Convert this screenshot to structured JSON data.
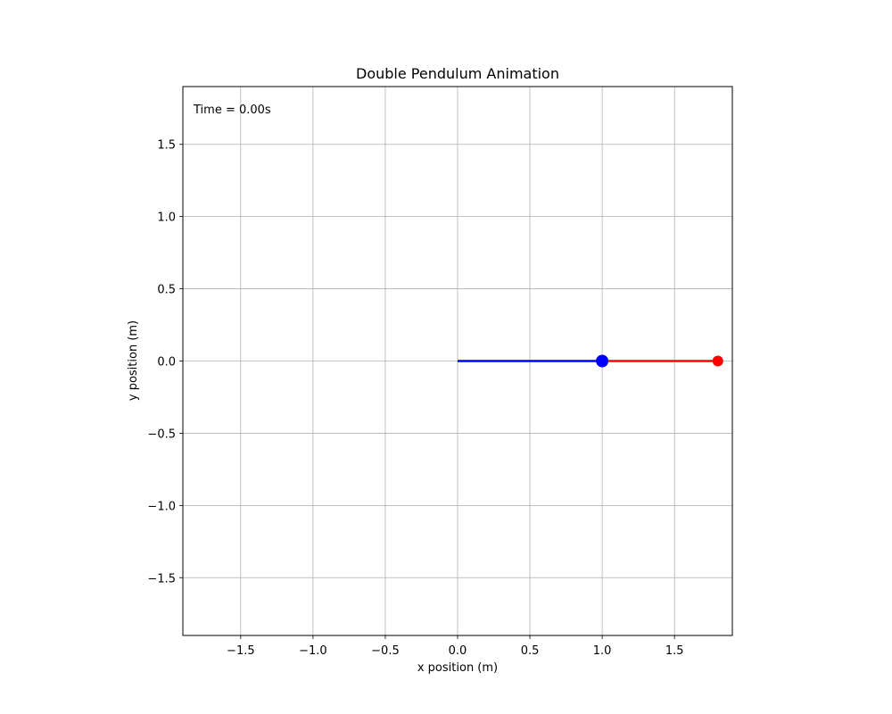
{
  "chart_data": {
    "type": "line",
    "title": "Double Pendulum Animation",
    "xlabel": "x position (m)",
    "ylabel": "y position (m)",
    "xlim": [
      -1.9,
      1.9
    ],
    "ylim": [
      -1.9,
      1.9
    ],
    "xticks": [
      -1.5,
      -1.0,
      -0.5,
      0.0,
      0.5,
      1.0,
      1.5
    ],
    "xtick_labels": [
      "−1.5",
      "−1.0",
      "−0.5",
      "0.0",
      "0.5",
      "1.0",
      "1.5"
    ],
    "yticks": [
      1.5,
      1.0,
      0.5,
      0.0,
      -0.5,
      -1.0,
      -1.5
    ],
    "ytick_labels": [
      "1.5",
      "1.0",
      "0.5",
      "0.0",
      "−0.5",
      "−1.0",
      "−1.5"
    ],
    "grid": true,
    "annotation": "Time = 0.00s",
    "series": [
      {
        "points": [
          [
            0.0,
            0.0
          ],
          [
            1.0,
            0.0
          ]
        ],
        "color": "#0000ff",
        "marker_at_end": true,
        "marker_size": 7
      },
      {
        "points": [
          [
            1.0,
            0.0
          ],
          [
            1.8,
            0.0
          ]
        ],
        "color": "#ff0000",
        "marker_at_end": true,
        "marker_size": 6
      }
    ]
  }
}
